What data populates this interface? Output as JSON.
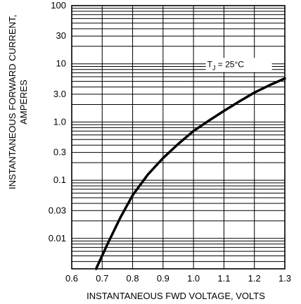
{
  "chart_data": {
    "type": "line",
    "scale_y": "log",
    "grid": true,
    "xlabel": "INSTANTANEOUS FWD VOLTAGE, VOLTS",
    "ylabel_lines": [
      "INSTANTANEOUS FORWARD CURRENT,",
      "AMPERES"
    ],
    "xlim": [
      0.6,
      1.3
    ],
    "ylim": [
      0.003,
      100
    ],
    "x_ticks": [
      "0.6",
      "0.7",
      "0.8",
      "0.9",
      "1.0",
      "1.1",
      "1.2",
      "1.3"
    ],
    "y_ticks": [
      {
        "label": "100",
        "value": 100
      },
      {
        "label": "30",
        "value": 30
      },
      {
        "label": "10",
        "value": 10
      },
      {
        "label": "3.0",
        "value": 3
      },
      {
        "label": "1.0",
        "value": 1
      },
      {
        "label": "0.3",
        "value": 0.3
      },
      {
        "label": "0.1",
        "value": 0.1
      },
      {
        "label": "0.03",
        "value": 0.03
      },
      {
        "label": "0.01",
        "value": 0.01
      }
    ],
    "annotation": {
      "text": "T",
      "subscript": "J",
      "suffix": " = 25°C",
      "x": 1.045,
      "y": 8.8
    },
    "series": [
      {
        "x": [
          0.68,
          0.72,
          0.76,
          0.8,
          0.85,
          0.9,
          0.95,
          1.0,
          1.05,
          1.1,
          1.15,
          1.2,
          1.25,
          1.3
        ],
        "y": [
          0.003,
          0.0085,
          0.023,
          0.055,
          0.125,
          0.24,
          0.42,
          0.7,
          1.05,
          1.55,
          2.25,
          3.2,
          4.3,
          5.6
        ]
      }
    ]
  }
}
